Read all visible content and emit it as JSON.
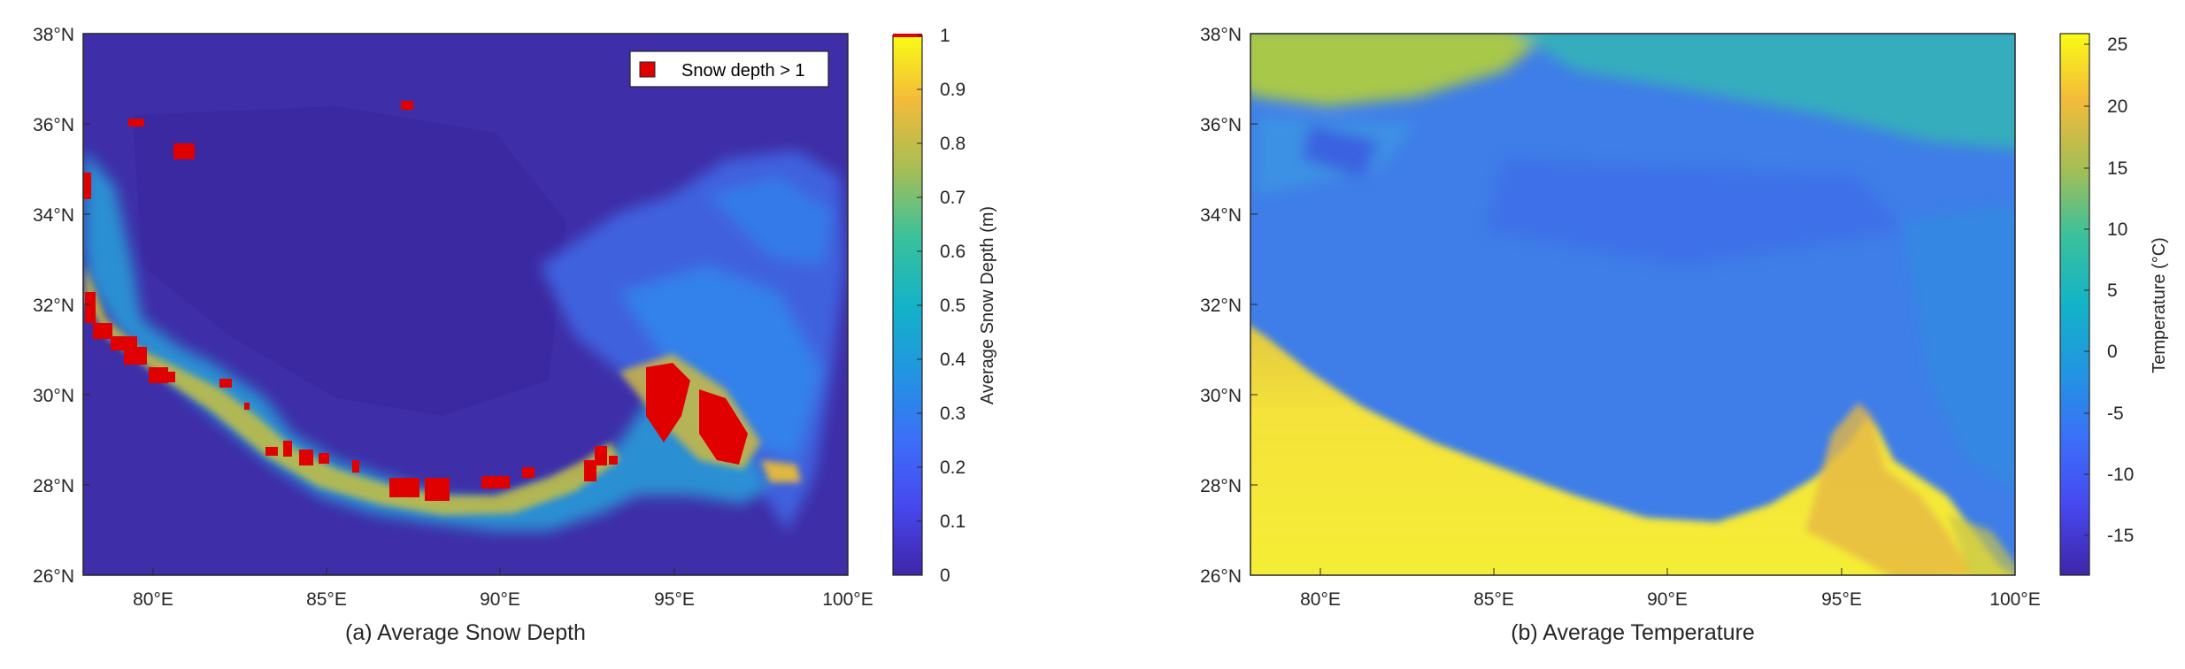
{
  "panels": [
    {
      "caption": "(a) Average Snow Depth",
      "x_ticks": [
        "80°E",
        "85°E",
        "90°E",
        "95°E",
        "100°E"
      ],
      "y_ticks": [
        "38°N",
        "36°N",
        "34°N",
        "32°N",
        "30°N",
        "28°N",
        "26°N"
      ],
      "colorbar_label": "Average Snow Depth (m)",
      "colorbar_ticks": [
        "1",
        "0.9",
        "0.8",
        "0.7",
        "0.6",
        "0.5",
        "0.4",
        "0.3",
        "0.2",
        "0.1",
        "0"
      ],
      "legend_label": "Snow depth > 1",
      "colors": {
        "background": "#3e2ea8",
        "high": "#e00000"
      }
    },
    {
      "caption": "(b) Average Temperature",
      "x_ticks": [
        "80°E",
        "85°E",
        "90°E",
        "95°E",
        "100°E"
      ],
      "y_ticks": [
        "38°N",
        "36°N",
        "34°N",
        "32°N",
        "30°N",
        "28°N",
        "26°N"
      ],
      "colorbar_label": "Temperature (°C)",
      "colorbar_ticks": [
        "25",
        "20",
        "15",
        "10",
        "5",
        "0",
        "-5",
        "-10",
        "-15"
      ],
      "colors": {
        "cold": "#3f7ee8",
        "warm": "#f2e933",
        "north": "#a8c84a"
      }
    }
  ]
}
